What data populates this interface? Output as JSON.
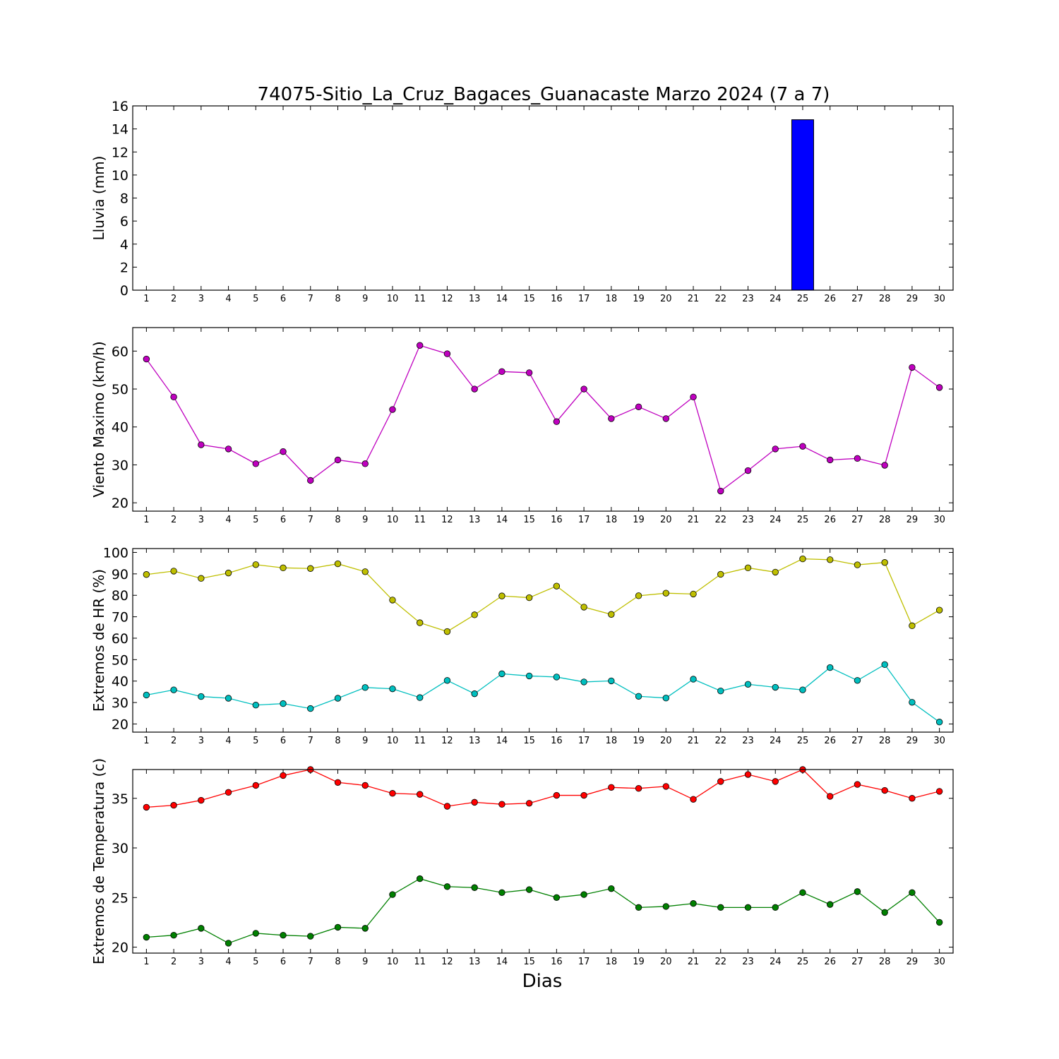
{
  "chart_data": [
    {
      "type": "bar",
      "title": "74075-Sitio_La_Cruz_Bagaces_Guanacaste Marzo 2024  (7 a 7)",
      "ylabel": "Lluvia (mm)",
      "xlabel": "",
      "ylim": [
        0,
        16
      ],
      "yticks": [
        0,
        2,
        4,
        6,
        8,
        10,
        12,
        14,
        16
      ],
      "x": [
        1,
        2,
        3,
        4,
        5,
        6,
        7,
        8,
        9,
        10,
        11,
        12,
        13,
        14,
        15,
        16,
        17,
        18,
        19,
        20,
        21,
        22,
        23,
        24,
        25,
        26,
        27,
        28,
        29,
        30
      ],
      "series": [
        {
          "color": "#0000ff",
          "values": [
            0,
            0,
            0,
            0,
            0,
            0,
            0,
            0,
            0,
            0,
            0,
            0,
            0,
            0,
            0,
            0,
            0,
            0,
            0,
            0,
            0,
            0,
            0,
            0,
            14.8,
            0,
            0,
            0,
            0,
            0
          ]
        }
      ]
    },
    {
      "type": "line",
      "ylabel": "Viento Maximo (km/h)",
      "ylim": [
        17.8,
        66.2
      ],
      "yticks": [
        20,
        30,
        40,
        50,
        60
      ],
      "x": [
        1,
        2,
        3,
        4,
        5,
        6,
        7,
        8,
        9,
        10,
        11,
        12,
        13,
        14,
        15,
        16,
        17,
        18,
        19,
        20,
        21,
        22,
        23,
        24,
        25,
        26,
        27,
        28,
        29,
        30
      ],
      "series": [
        {
          "color": "#bf00bf",
          "values": [
            57.9,
            47.9,
            35.3,
            34.2,
            30.3,
            33.5,
            25.9,
            31.3,
            30.3,
            44.6,
            61.5,
            59.3,
            50.0,
            54.6,
            54.3,
            41.4,
            50.0,
            42.2,
            45.3,
            42.2,
            47.9,
            23.1,
            28.5,
            34.2,
            34.9,
            31.3,
            31.7,
            29.9,
            55.7,
            50.4
          ]
        }
      ]
    },
    {
      "type": "line",
      "ylabel": "Extremos de HR (%)",
      "ylim": [
        16.2,
        101.8
      ],
      "yticks": [
        20,
        30,
        40,
        50,
        60,
        70,
        80,
        90,
        100
      ],
      "x": [
        1,
        2,
        3,
        4,
        5,
        6,
        7,
        8,
        9,
        10,
        11,
        12,
        13,
        14,
        15,
        16,
        17,
        18,
        19,
        20,
        21,
        22,
        23,
        24,
        25,
        26,
        27,
        28,
        29,
        30
      ],
      "series": [
        {
          "color": "#bfbf00",
          "values": [
            89.7,
            91.3,
            87.9,
            90.4,
            94.3,
            92.8,
            92.5,
            94.7,
            91.0,
            77.8,
            67.2,
            63.1,
            70.9,
            79.7,
            78.9,
            84.3,
            74.5,
            71.1,
            79.8,
            81.0,
            80.6,
            89.8,
            92.8,
            90.8,
            97.0,
            96.6,
            94.2,
            95.3,
            65.8,
            73.1
          ]
        },
        {
          "color": "#00bfbf",
          "values": [
            33.5,
            35.9,
            32.8,
            32.0,
            28.8,
            29.5,
            27.2,
            32.0,
            37.0,
            36.4,
            32.3,
            40.3,
            34.1,
            43.4,
            42.4,
            41.9,
            39.6,
            40.1,
            32.9,
            32.1,
            40.9,
            35.4,
            38.5,
            37.1,
            35.9,
            46.3,
            40.3,
            47.7,
            30.1,
            20.9
          ]
        }
      ]
    },
    {
      "type": "line",
      "ylabel": "Extremos de Temperatura (c)",
      "xlabel": "Dias",
      "ylim": [
        19.4,
        37.9
      ],
      "yticks": [
        20,
        25,
        30,
        35
      ],
      "x": [
        1,
        2,
        3,
        4,
        5,
        6,
        7,
        8,
        9,
        10,
        11,
        12,
        13,
        14,
        15,
        16,
        17,
        18,
        19,
        20,
        21,
        22,
        23,
        24,
        25,
        26,
        27,
        28,
        29,
        30
      ],
      "series": [
        {
          "color": "#ff0000",
          "values": [
            34.1,
            34.3,
            34.8,
            35.6,
            36.3,
            37.3,
            37.9,
            36.6,
            36.3,
            35.5,
            35.4,
            34.2,
            34.6,
            34.4,
            34.5,
            35.3,
            35.3,
            36.1,
            36.0,
            36.2,
            34.9,
            36.7,
            37.4,
            36.7,
            37.9,
            35.2,
            36.4,
            35.8,
            35.0,
            35.7
          ]
        },
        {
          "color": "#008000",
          "values": [
            21.0,
            21.2,
            21.9,
            20.4,
            21.4,
            21.2,
            21.1,
            22.0,
            21.9,
            25.3,
            26.9,
            26.1,
            26.0,
            25.5,
            25.8,
            25.0,
            25.3,
            25.9,
            24.0,
            24.1,
            24.4,
            24.0,
            24.0,
            24.0,
            25.5,
            24.3,
            25.6,
            23.5,
            25.5,
            22.5
          ]
        }
      ]
    }
  ]
}
